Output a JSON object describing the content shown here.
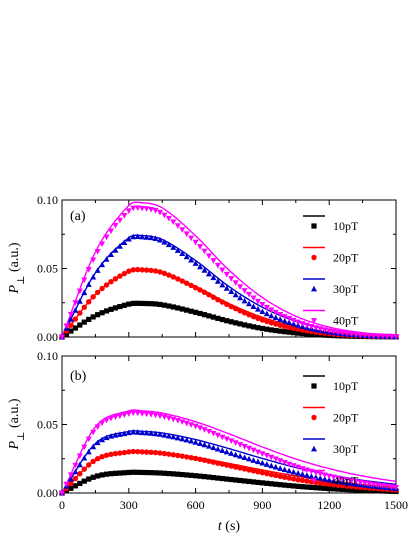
{
  "chart_data": [
    {
      "type": "line",
      "panel_label": "(a)",
      "ylabel": "P⊥ (a.u.)",
      "xlabel": "",
      "xlim": [
        0,
        1500
      ],
      "ylim": [
        0,
        0.1
      ],
      "yticks": [
        "0.00",
        "0.05",
        "0.10"
      ],
      "xticks": [
        "0",
        "300",
        "600",
        "900",
        "1200",
        "1500"
      ],
      "show_xtick_labels": false,
      "legend_position": "top-right",
      "series": [
        {
          "name": "10pT",
          "color": "#000000",
          "marker": "square",
          "fit_peak": 0.0245,
          "data_peak": 0.0245,
          "x": [
            0,
            150,
            300,
            360,
            450,
            600,
            750,
            900,
            1050,
            1200,
            1350,
            1500
          ],
          "fit": [
            0,
            0.0155,
            0.024,
            0.0245,
            0.0236,
            0.0185,
            0.0122,
            0.0072,
            0.0038,
            0.0018,
            0.0008,
            0.0003
          ],
          "data": [
            0,
            0.0155,
            0.024,
            0.0245,
            0.0235,
            0.018,
            0.0115,
            0.0062,
            0.003,
            0.0012,
            0.0004,
            0.0001
          ]
        },
        {
          "name": "20pT",
          "color": "#ff0000",
          "marker": "circle",
          "fit_peak": 0.049,
          "data_peak": 0.049,
          "x": [
            0,
            150,
            300,
            360,
            450,
            600,
            750,
            900,
            1050,
            1200,
            1350,
            1500
          ],
          "fit": [
            0,
            0.031,
            0.048,
            0.049,
            0.0472,
            0.037,
            0.0244,
            0.0144,
            0.0076,
            0.0036,
            0.0016,
            0.0006
          ],
          "data": [
            0,
            0.031,
            0.048,
            0.049,
            0.047,
            0.036,
            0.023,
            0.0124,
            0.006,
            0.0024,
            0.0008,
            0.0002
          ]
        },
        {
          "name": "30pT",
          "color": "#0000cc",
          "marker": "triangle-up",
          "fit_peak": 0.074,
          "data_peak": 0.073,
          "x": [
            0,
            150,
            300,
            360,
            450,
            600,
            750,
            900,
            1050,
            1200,
            1350,
            1500
          ],
          "fit": [
            0,
            0.0468,
            0.0725,
            0.074,
            0.0712,
            0.0558,
            0.0368,
            0.0217,
            0.0115,
            0.0054,
            0.0024,
            0.0009
          ],
          "data": [
            0,
            0.0462,
            0.0715,
            0.073,
            0.07,
            0.0537,
            0.0343,
            0.0185,
            0.009,
            0.0036,
            0.0012,
            0.0003
          ]
        },
        {
          "name": "40pT",
          "color": "#ff00ff",
          "marker": "triangle-down",
          "fit_peak": 0.098,
          "data_peak": 0.094,
          "x": [
            0,
            150,
            300,
            360,
            450,
            600,
            750,
            900,
            1050,
            1200,
            1350,
            1500
          ],
          "fit": [
            0,
            0.062,
            0.096,
            0.098,
            0.0943,
            0.0739,
            0.0488,
            0.0288,
            0.0152,
            0.0072,
            0.0031,
            0.0012
          ],
          "data": [
            0,
            0.0595,
            0.0921,
            0.094,
            0.0901,
            0.0692,
            0.0442,
            0.0238,
            0.0116,
            0.0046,
            0.0015,
            0.0004
          ]
        }
      ]
    },
    {
      "type": "line",
      "panel_label": "(b)",
      "ylabel": "P⊥ (a.u.)",
      "xlabel": "t (s)",
      "xlim": [
        0,
        1500
      ],
      "ylim": [
        0,
        0.1
      ],
      "yticks": [
        "0.00",
        "0.05",
        "0.10"
      ],
      "xticks": [
        "0",
        "300",
        "600",
        "900",
        "1200",
        "1500"
      ],
      "show_xtick_labels": true,
      "legend_position": "right",
      "series": [
        {
          "name": "10pT",
          "color": "#000000",
          "marker": "square",
          "fit_peak": 0.015,
          "data_peak": 0.015,
          "x": [
            0,
            150,
            300,
            360,
            450,
            600,
            750,
            900,
            1050,
            1200,
            1350,
            1500
          ],
          "fit": [
            0,
            0.012,
            0.015,
            0.015,
            0.0146,
            0.013,
            0.0108,
            0.0084,
            0.0062,
            0.0045,
            0.0031,
            0.0021
          ],
          "data": [
            0,
            0.012,
            0.015,
            0.015,
            0.0145,
            0.0126,
            0.01,
            0.0074,
            0.005,
            0.0032,
            0.002,
            0.0011
          ]
        },
        {
          "name": "20pT",
          "color": "#ff0000",
          "marker": "circle",
          "fit_peak": 0.03,
          "data_peak": 0.03,
          "x": [
            0,
            150,
            300,
            360,
            450,
            600,
            750,
            900,
            1050,
            1200,
            1350,
            1500
          ],
          "fit": [
            0,
            0.0241,
            0.03,
            0.03,
            0.0292,
            0.026,
            0.0216,
            0.0168,
            0.0124,
            0.0089,
            0.0062,
            0.0042
          ],
          "data": [
            0,
            0.0241,
            0.03,
            0.03,
            0.029,
            0.0252,
            0.02,
            0.0148,
            0.01,
            0.0064,
            0.004,
            0.0022
          ]
        },
        {
          "name": "30pT",
          "color": "#0000cc",
          "marker": "triangle-up",
          "fit_peak": 0.045,
          "data_peak": 0.044,
          "x": [
            0,
            150,
            300,
            360,
            450,
            600,
            750,
            900,
            1050,
            1200,
            1350,
            1500
          ],
          "fit": [
            0,
            0.0361,
            0.045,
            0.045,
            0.0438,
            0.039,
            0.0324,
            0.0252,
            0.0186,
            0.0134,
            0.0093,
            0.0063
          ],
          "data": [
            0,
            0.0353,
            0.044,
            0.044,
            0.0425,
            0.037,
            0.0294,
            0.0218,
            0.0148,
            0.0094,
            0.0058,
            0.0032
          ]
        },
        {
          "name": "40pT",
          "color": "#ff00ff",
          "marker": "triangle-down",
          "fit_peak": 0.06,
          "data_peak": 0.058,
          "x": [
            0,
            150,
            300,
            360,
            450,
            600,
            750,
            900,
            1050,
            1200,
            1350,
            1500
          ],
          "fit": [
            0,
            0.0482,
            0.06,
            0.06,
            0.0584,
            0.052,
            0.0432,
            0.0336,
            0.0248,
            0.0178,
            0.0124,
            0.0084
          ],
          "data": [
            0,
            0.0465,
            0.058,
            0.058,
            0.056,
            0.0488,
            0.0388,
            0.0287,
            0.0195,
            0.0124,
            0.0076,
            0.0042
          ]
        }
      ]
    }
  ]
}
